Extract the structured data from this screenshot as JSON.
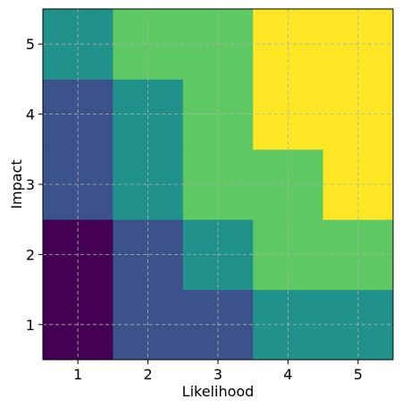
{
  "chart_data": {
    "type": "heatmap",
    "xlabel": "Likelihood",
    "ylabel": "Impact",
    "x": [
      1,
      2,
      3,
      4,
      5
    ],
    "y": [
      1,
      2,
      3,
      4,
      5
    ],
    "values": [
      [
        1,
        2,
        2,
        3,
        3
      ],
      [
        1,
        2,
        3,
        4,
        4
      ],
      [
        2,
        3,
        4,
        4,
        5
      ],
      [
        2,
        3,
        4,
        5,
        5
      ],
      [
        3,
        4,
        4,
        5,
        5
      ]
    ],
    "value_range": [
      1,
      5
    ],
    "colormap": [
      "#440154",
      "#3b528b",
      "#21918c",
      "#5ec962",
      "#fde725"
    ],
    "grid": true,
    "grid_color": "#b0b0b0",
    "legend": "none"
  }
}
